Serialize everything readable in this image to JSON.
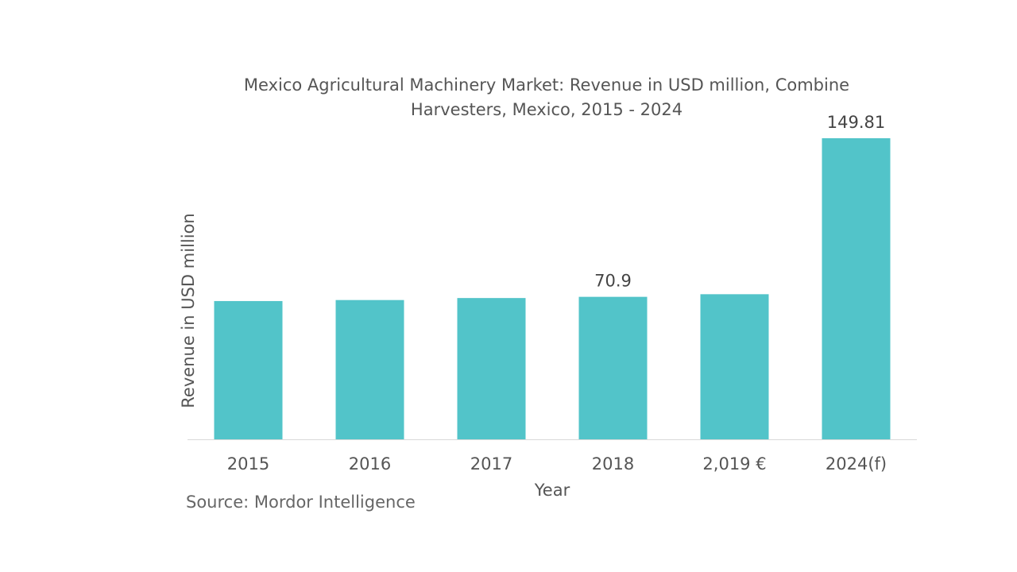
{
  "chart_data": {
    "type": "bar",
    "title": "Mexico Agricultural Machinery Market: Revenue in USD million, Combine Harvesters, Mexico,  2015 - 2024",
    "xlabel": "Year",
    "ylabel": "Revenue in USD million",
    "categories": [
      "2015",
      "2016",
      "2017",
      "2018",
      "2,019 €",
      "2024(f)"
    ],
    "values": [
      68.8,
      69.3,
      70.3,
      70.9,
      72.2,
      149.81
    ],
    "data_labels": [
      "",
      "",
      "",
      "70.9",
      "",
      "149.81"
    ],
    "ylim": [
      0,
      149.81
    ],
    "grid": false,
    "legend": "none",
    "colors": {
      "bar": "#52c4c9",
      "axis": "#d9d9d9",
      "text": "#555555"
    }
  },
  "footer": {
    "source": "Source: Mordor Intelligence"
  }
}
